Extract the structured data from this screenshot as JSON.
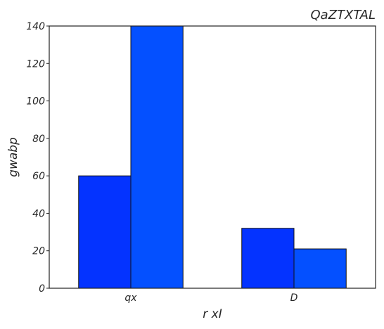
{
  "chart_data": {
    "type": "bar",
    "title": "QaZTXTAL",
    "xlabel": "r  xI",
    "ylabel": "gwabp",
    "categories": [
      "qx",
      "D"
    ],
    "series": [
      {
        "values": [
          60,
          32
        ],
        "color": "#0433ff"
      },
      {
        "values": [
          140,
          21
        ],
        "color": "#0450ff"
      }
    ],
    "ylim": [
      0,
      140
    ],
    "yticks": [
      0,
      20,
      40,
      60,
      80,
      100,
      120,
      140
    ],
    "grid": false,
    "legend": "none"
  }
}
